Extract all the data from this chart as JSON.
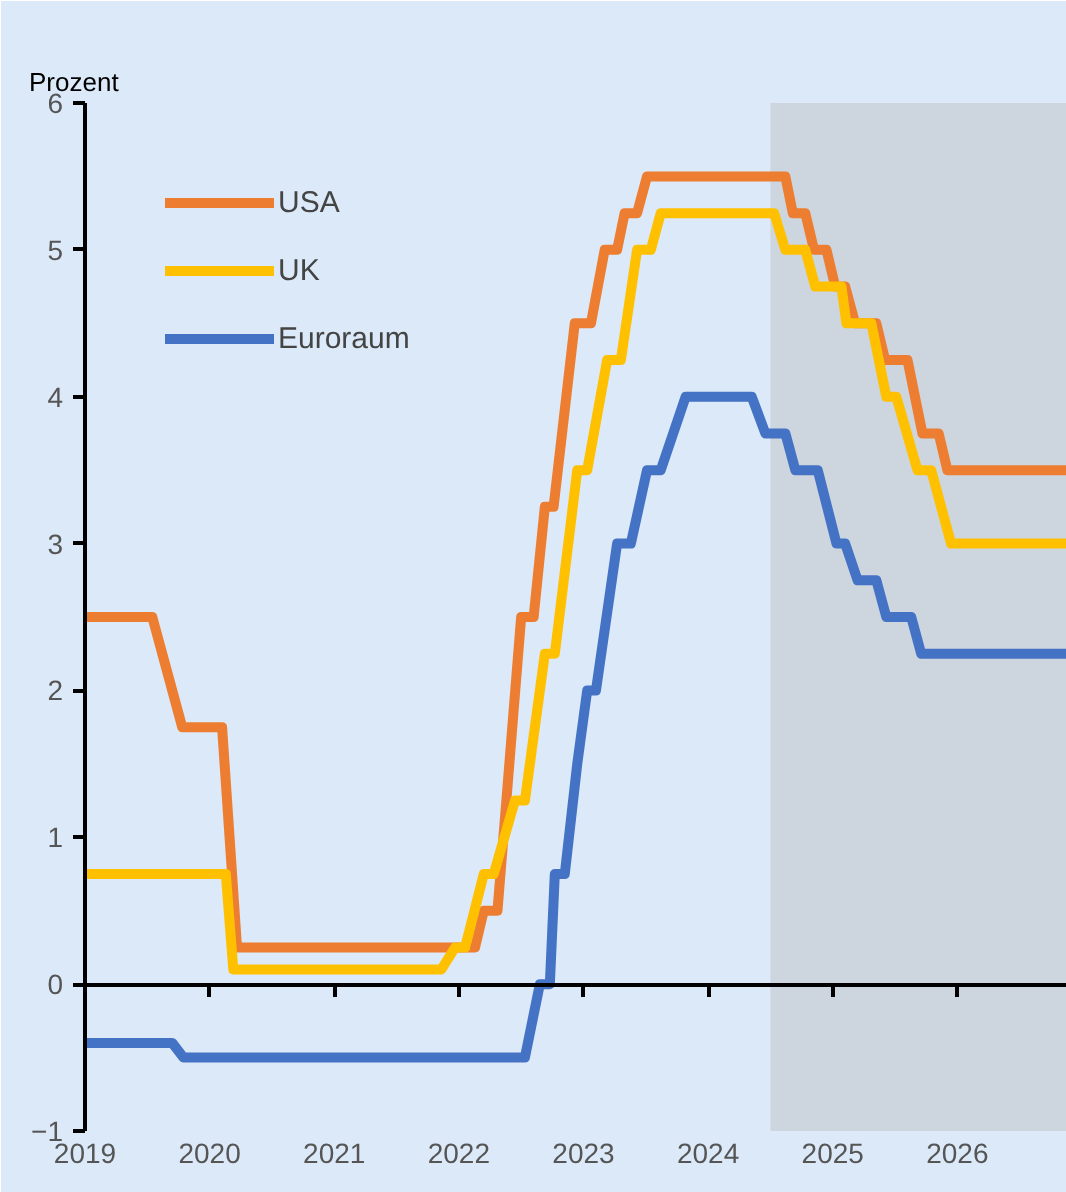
{
  "chart_data": {
    "type": "line",
    "ylabel": "Prozent",
    "xlim": [
      2019,
      2026.88
    ],
    "xticks": [
      2019,
      2020,
      2021,
      2022,
      2023,
      2024,
      2025,
      2026
    ],
    "ylim": [
      -1,
      6
    ],
    "yticks": [
      -1,
      0,
      1,
      2,
      3,
      4,
      5,
      6
    ],
    "legend": "top left",
    "line_style": "solid",
    "marker": "none",
    "bands": [
      {
        "axis": "x",
        "from": 2024.5,
        "to": 2026.88,
        "color": "#cdd5de"
      }
    ],
    "series": [
      {
        "name": "USA",
        "color": "#ed7d31",
        "x": [
          2019,
          2019.54,
          2019.78,
          2020.1,
          2020.22,
          2022.13,
          2022.2,
          2022.31,
          2022.5,
          2022.6,
          2022.69,
          2022.76,
          2022.93,
          2023.06,
          2023.17,
          2023.27,
          2023.33,
          2023.43,
          2023.51,
          2024.62,
          2024.68,
          2024.78,
          2024.85,
          2024.95,
          2025.02,
          2025.1,
          2025.18,
          2025.35,
          2025.42,
          2025.6,
          2025.72,
          2025.85,
          2025.92,
          2026.88
        ],
        "values": [
          2.5,
          2.5,
          1.75,
          1.75,
          0.25,
          0.25,
          0.5,
          0.5,
          2.5,
          2.5,
          3.25,
          3.25,
          4.5,
          4.5,
          5.0,
          5.0,
          5.25,
          5.25,
          5.5,
          5.5,
          5.25,
          5.25,
          5.0,
          5.0,
          4.75,
          4.75,
          4.5,
          4.5,
          4.25,
          4.25,
          3.75,
          3.75,
          3.5,
          3.5
        ]
      },
      {
        "name": "UK",
        "color": "#ffc000",
        "x": [
          2019,
          2020.13,
          2020.19,
          2021.86,
          2021.97,
          2022.05,
          2022.2,
          2022.28,
          2022.45,
          2022.53,
          2022.69,
          2022.77,
          2022.95,
          2023.03,
          2023.19,
          2023.3,
          2023.43,
          2023.54,
          2023.62,
          2024.53,
          2024.62,
          2024.78,
          2024.86,
          2025.07,
          2025.11,
          2025.31,
          2025.43,
          2025.51,
          2025.68,
          2025.79,
          2025.95,
          2026.88
        ],
        "values": [
          0.75,
          0.75,
          0.1,
          0.1,
          0.25,
          0.25,
          0.75,
          0.75,
          1.25,
          1.25,
          2.25,
          2.25,
          3.5,
          3.5,
          4.25,
          4.25,
          5.0,
          5.0,
          5.25,
          5.25,
          5.0,
          5.0,
          4.75,
          4.75,
          4.5,
          4.5,
          4.0,
          4.0,
          3.5,
          3.5,
          3.0,
          3.0
        ]
      },
      {
        "name": "Euroraum",
        "color": "#4472c4",
        "x": [
          2019,
          2019.7,
          2019.79,
          2022.53,
          2022.65,
          2022.73,
          2022.77,
          2022.85,
          2022.95,
          2023.03,
          2023.1,
          2023.27,
          2023.38,
          2023.51,
          2023.62,
          2023.82,
          2024.35,
          2024.46,
          2024.62,
          2024.7,
          2024.88,
          2025.03,
          2025.1,
          2025.2,
          2025.35,
          2025.43,
          2025.63,
          2025.71,
          2026.88
        ],
        "values": [
          -0.4,
          -0.4,
          -0.5,
          -0.5,
          0.0,
          0.0,
          0.75,
          0.75,
          1.5,
          2.0,
          2.0,
          3.0,
          3.0,
          3.5,
          3.5,
          4.0,
          4.0,
          3.75,
          3.75,
          3.5,
          3.5,
          3.0,
          3.0,
          2.75,
          2.75,
          2.5,
          2.5,
          2.25,
          2.25
        ]
      }
    ]
  }
}
